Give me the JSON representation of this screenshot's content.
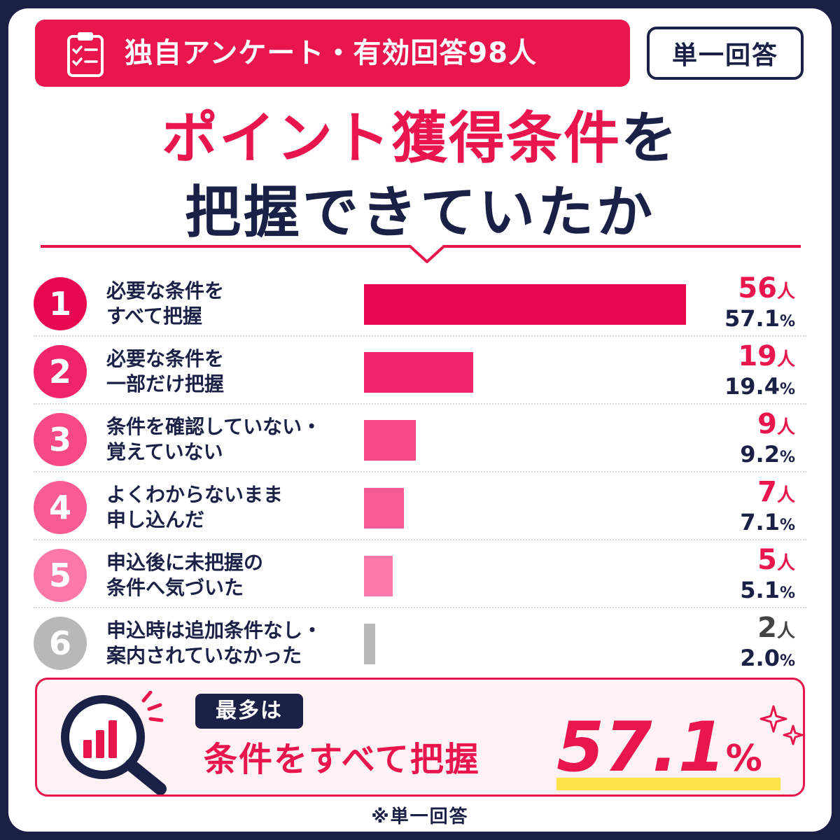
{
  "header": {
    "survey_label": "独自アンケート・有効回答98人",
    "single_answer_badge": "単一回答"
  },
  "title": {
    "line1_highlight": "ポイント獲得条件",
    "line1_tail": "を",
    "line2": "把握できていたか"
  },
  "colors": {
    "accent": "#e8164d",
    "navy": "#1b2146",
    "highlight": "#ffe14a"
  },
  "chart_data": {
    "type": "bar",
    "orientation": "horizontal",
    "unit_count": "人",
    "unit_pct": "%",
    "categories": [
      {
        "rank": "1",
        "line1": "必要な条件を",
        "line2": "すべて把握",
        "count": "56",
        "percent": "57.1",
        "value": 57.1,
        "color": "#e8084f",
        "text_color": "#e8164d"
      },
      {
        "rank": "2",
        "line1": "必要な条件を",
        "line2": "一部だけ把握",
        "count": "19",
        "percent": "19.4",
        "value": 19.4,
        "color": "#f0246a",
        "text_color": "#e8164d"
      },
      {
        "rank": "3",
        "line1": "条件を確認していない・",
        "line2": "覚えていない",
        "count": "9",
        "percent": "9.2",
        "value": 9.2,
        "color": "#f64986",
        "text_color": "#e8164d"
      },
      {
        "rank": "4",
        "line1": "よくわからないまま",
        "line2": "申し込んだ",
        "count": "7",
        "percent": "7.1",
        "value": 7.1,
        "color": "#f95c94",
        "text_color": "#e8164d"
      },
      {
        "rank": "5",
        "line1": "申込後に未把握の",
        "line2": "条件へ気づいた",
        "count": "5",
        "percent": "5.1",
        "value": 5.1,
        "color": "#fb78a8",
        "text_color": "#e8164d"
      },
      {
        "rank": "6",
        "line1": "申込時は追加条件なし・",
        "line2": "案内されていなかった",
        "count": "2",
        "percent": "2.0",
        "value": 2.0,
        "color": "#b8b8b8",
        "text_color": "#444444"
      }
    ]
  },
  "summary": {
    "badge": "最多は",
    "label": "条件をすべて把握",
    "value": "57.1",
    "unit": "%"
  },
  "footnote": "※単一回答"
}
